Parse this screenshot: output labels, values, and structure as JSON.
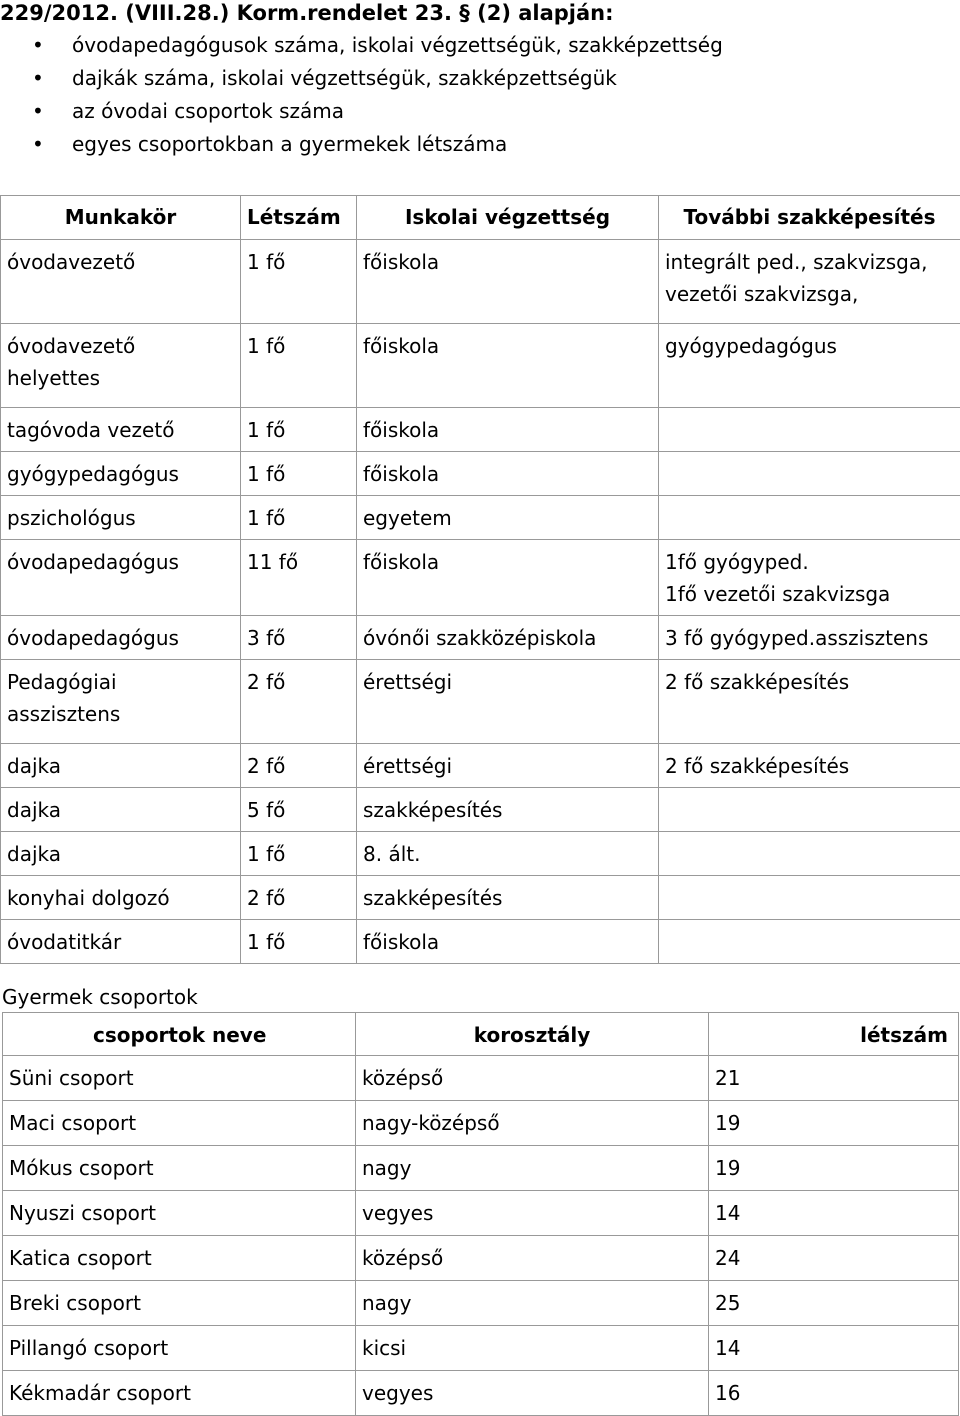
{
  "heading": "229/2012. (VIII.28.) Korm.rendelet 23. § (2) alapján:",
  "bullets": [
    "óvodapedagógusok száma, iskolai végzettségük, szakképzettség",
    "dajkák száma, iskolai végzettségük, szakképzettségük",
    "az óvodai csoportok száma",
    "egyes csoportokban a gyermekek létszáma"
  ],
  "staff_table": {
    "headers": [
      "Munkakör",
      "Létszám",
      "Iskolai végzettség",
      "További szakképesítés"
    ],
    "rows": [
      [
        "óvodavezető",
        "1 fő",
        "főiskola",
        "integrált ped., szakvizsga,\nvezetői szakvizsga,"
      ],
      [
        "óvodavezető\nhelyettes",
        "1 fő",
        "főiskola",
        "gyógypedagógus"
      ],
      [
        "tagóvoda vezető",
        "1 fő",
        "főiskola",
        ""
      ],
      [
        "gyógypedagógus",
        "1 fő",
        "főiskola",
        ""
      ],
      [
        "pszichológus",
        "1 fő",
        "egyetem",
        ""
      ],
      [
        "óvodapedagógus",
        "11 fő",
        "főiskola",
        "1fő gyógyped.\n1fő vezetői szakvizsga"
      ],
      [
        "óvodapedagógus",
        "3 fő",
        "óvónői szakközépiskola",
        "3 fő gyógyped.asszisztens"
      ],
      [
        "Pedagógiai\nasszisztens",
        "2 fő",
        "érettségi",
        "2 fő szakképesítés"
      ],
      [
        "dajka",
        "2 fő",
        "érettségi",
        "2 fő szakképesítés"
      ],
      [
        "dajka",
        "5 fő",
        "szakképesítés",
        ""
      ],
      [
        "dajka",
        "1 fő",
        "8. ált.",
        ""
      ],
      [
        "konyhai dolgozó",
        "2 fő",
        "szakképesítés",
        ""
      ],
      [
        "óvodatitkár",
        "1 fő",
        "főiskola",
        ""
      ]
    ]
  },
  "groups_caption": "Gyermek csoportok",
  "groups_table": {
    "headers": [
      "csoportok neve",
      "korosztály",
      "létszám"
    ],
    "rows": [
      [
        "Süni csoport",
        "középső",
        "21"
      ],
      [
        "Maci csoport",
        "nagy-középső",
        "19"
      ],
      [
        "Mókus csoport",
        "nagy",
        "19"
      ],
      [
        "Nyuszi csoport",
        "vegyes",
        "14"
      ],
      [
        "Katica csoport",
        "középső",
        "24"
      ],
      [
        "Breki csoport",
        "nagy",
        "25"
      ],
      [
        "Pillangó csoport",
        "kicsi",
        "14"
      ],
      [
        "Kékmadár csoport",
        "vegyes",
        "16"
      ]
    ]
  }
}
